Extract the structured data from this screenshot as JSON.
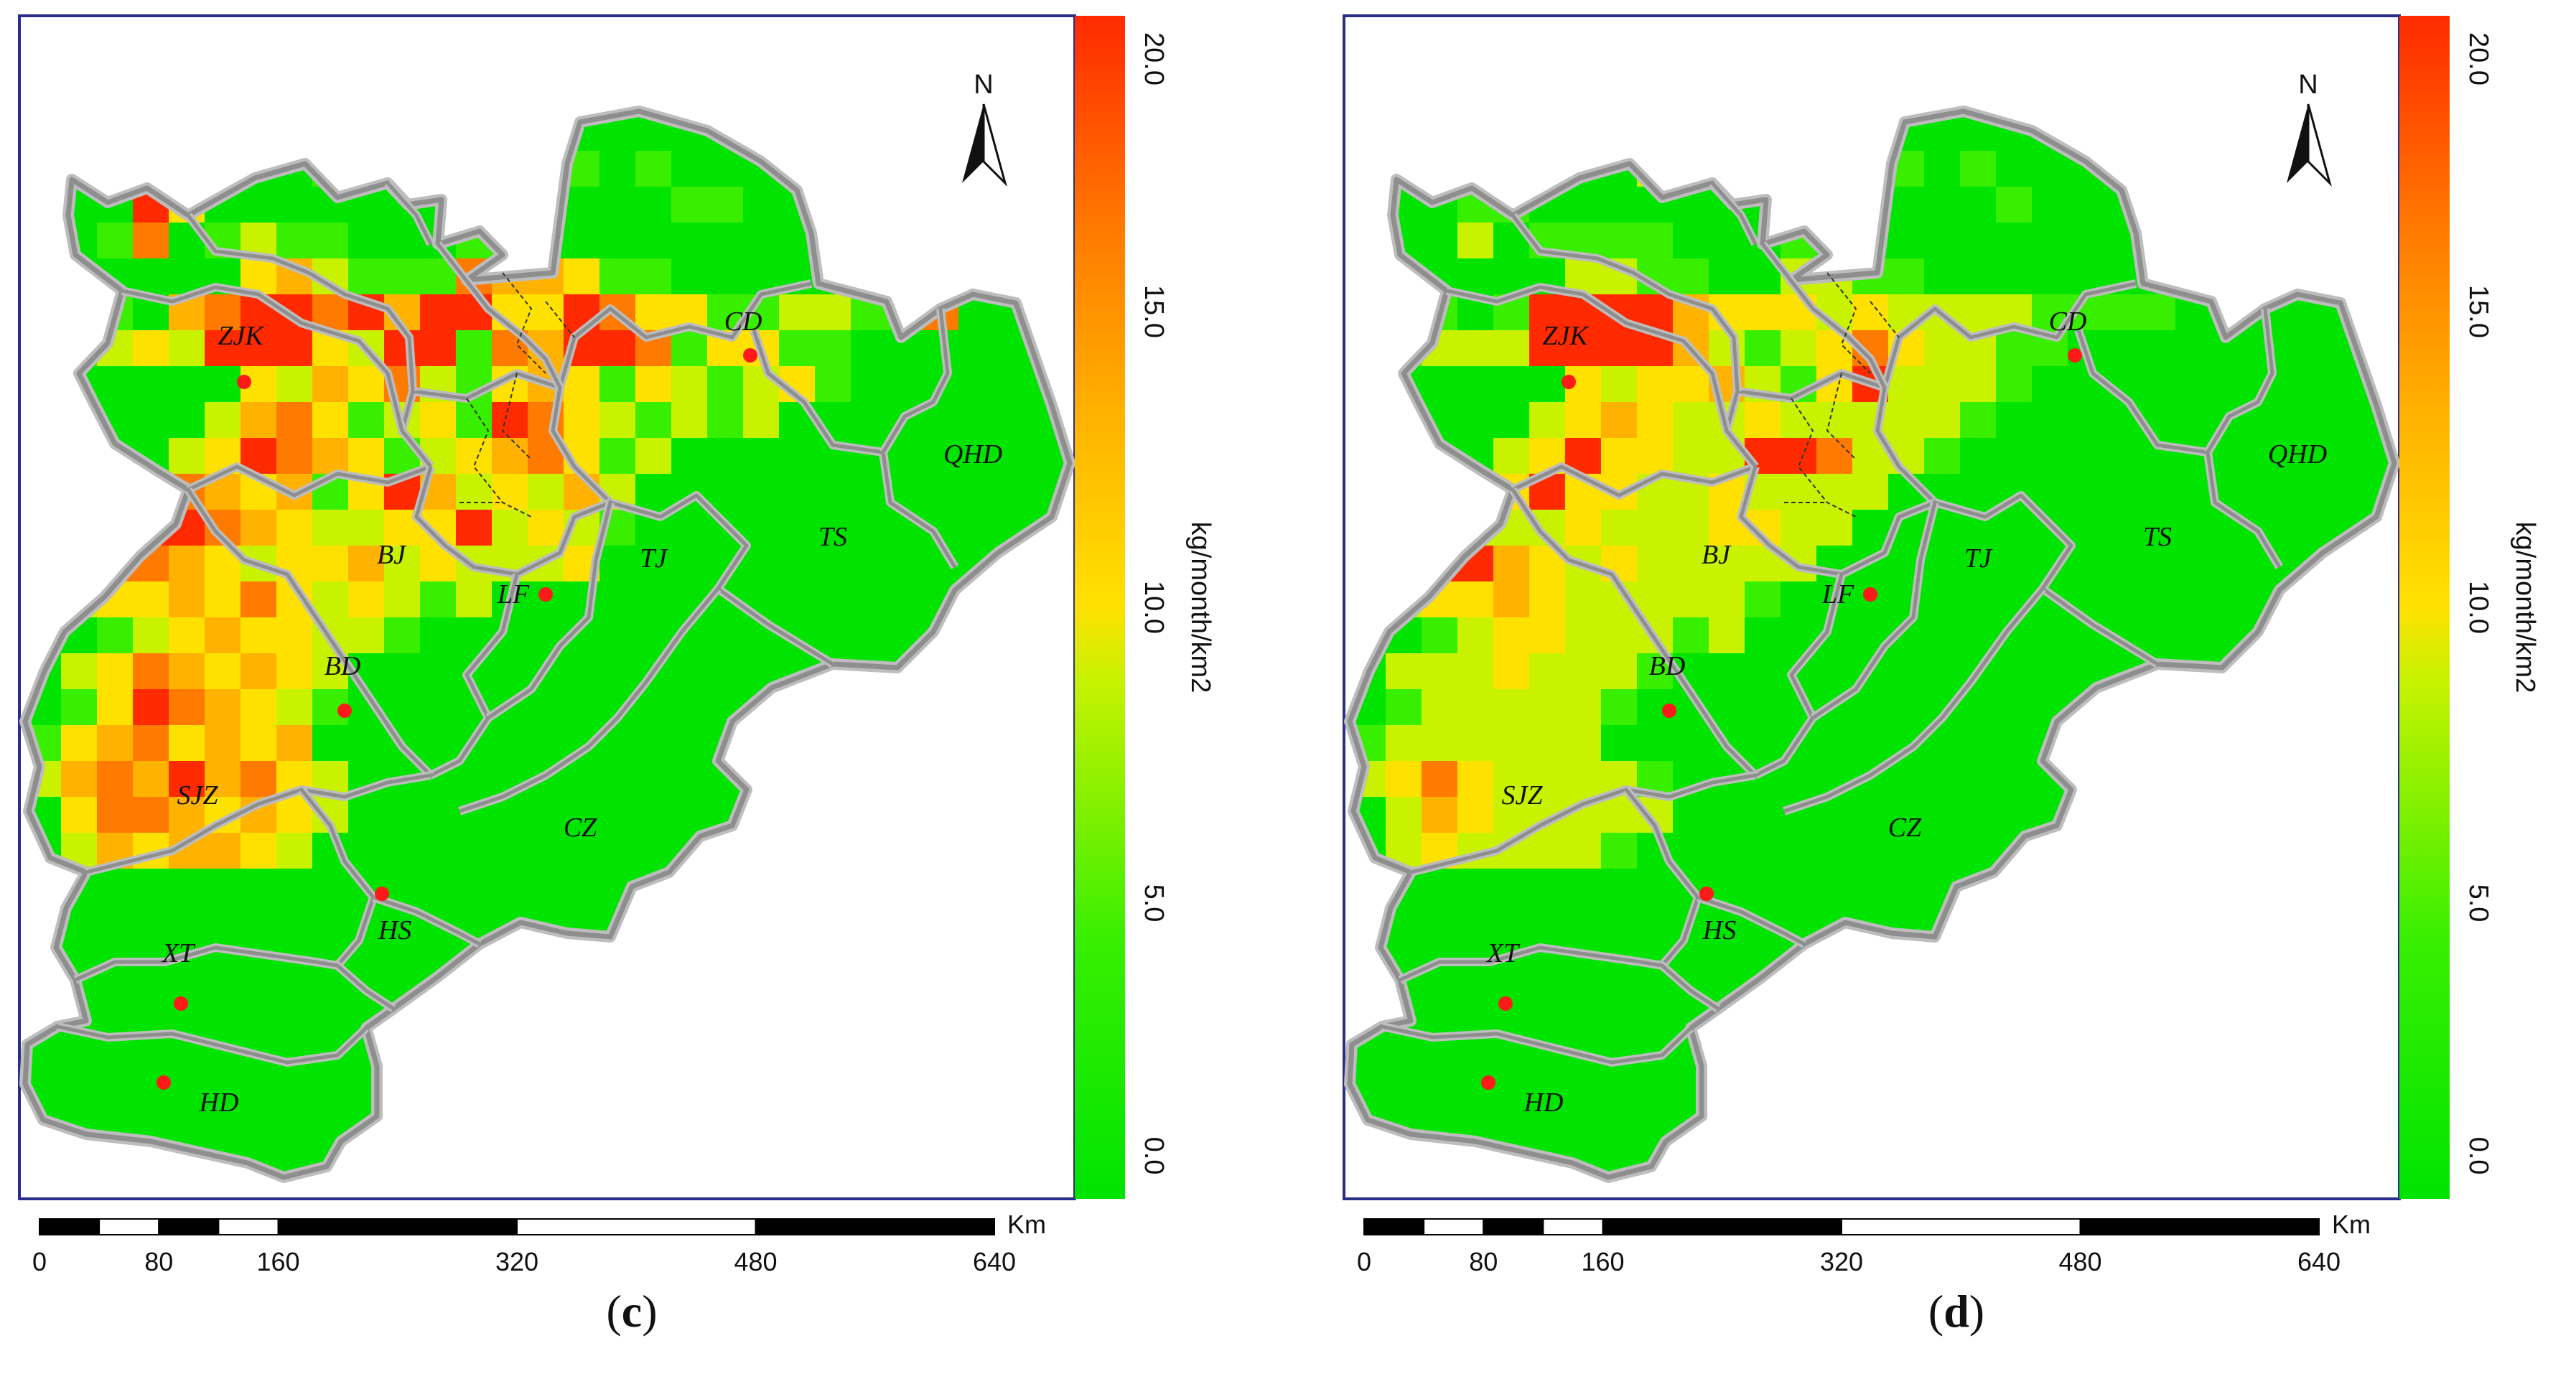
{
  "colorbar": {
    "unit": "kg/month/km2",
    "ticks": [
      "0.0",
      "5.0",
      "10.0",
      "15.0",
      "20.0"
    ],
    "min": 0,
    "max": 20,
    "colors": [
      "#00e400",
      "#39ef00",
      "#c8f200",
      "#ffe100",
      "#ffb300",
      "#ff7a00",
      "#ff2a00"
    ]
  },
  "north_arrow": {
    "label": "N"
  },
  "scale_bar": {
    "unit": "Km",
    "labels": [
      "0",
      "80",
      "160",
      "320",
      "480",
      "640"
    ]
  },
  "places": [
    "ZJK",
    "CD",
    "QHD",
    "TS",
    "BJ",
    "TJ",
    "LF",
    "BD",
    "SJZ",
    "CZ",
    "HS",
    "XT",
    "HD"
  ],
  "colors": {
    "frame": "#2b2d8a",
    "land": "#00e400",
    "border": "#8e8e8e",
    "city_dot": "#ff1a1a"
  },
  "panels": [
    {
      "id": "c",
      "caption_open": "(",
      "caption_letter": "c",
      "caption_close": ")"
    },
    {
      "id": "d",
      "caption_open": "(",
      "caption_letter": "d",
      "caption_close": ")"
    }
  ]
}
